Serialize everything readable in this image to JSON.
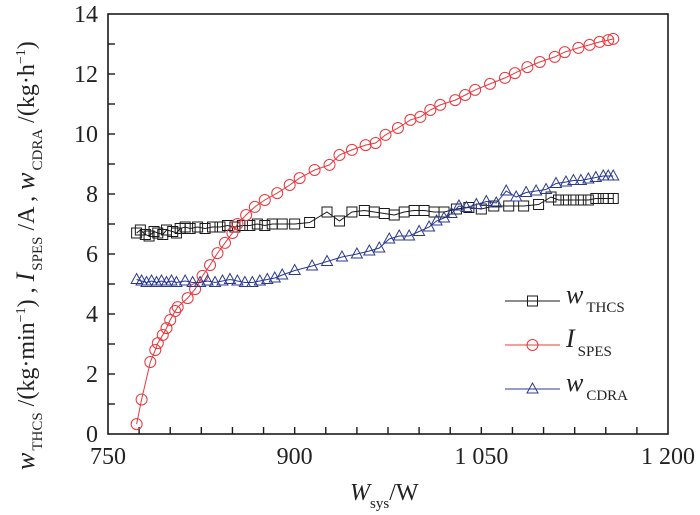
{
  "chart_data": {
    "type": "line",
    "title": "",
    "xlabel": {
      "main": "W",
      "sub": "sys",
      "unit": "/W"
    },
    "ylabel": [
      {
        "main": "w",
        "sub": "THCS",
        "unit": " /(kg·min",
        "sup": "−1",
        "tail": ") , "
      },
      {
        "main": "I",
        "sub": "SPES",
        "unit": " /A , ",
        "sup": "",
        "tail": ""
      },
      {
        "main": "w",
        "sub": "CDRA",
        "unit": " /(kg·h",
        "sup": "−1",
        "tail": ")"
      }
    ],
    "xlim": [
      750,
      1200
    ],
    "ylim": [
      0,
      14
    ],
    "x_ticks": [
      750,
      900,
      1050,
      1200
    ],
    "x_tick_labels": [
      "750",
      "900",
      "1 050",
      "1 200"
    ],
    "x_minor_step": 25,
    "y_ticks": [
      0,
      2,
      4,
      6,
      8,
      10,
      12,
      14
    ],
    "y_tick_labels": [
      "0",
      "2",
      "4",
      "6",
      "8",
      "10",
      "12",
      "14"
    ],
    "y_minor_step": 1,
    "grid": false,
    "legend_position": "bottom-right",
    "series": [
      {
        "name": "w_THCS",
        "label_main": "w",
        "label_sub": "THCS",
        "color": "#1a1a1a",
        "marker": "square",
        "x": [
          773,
          776,
          780,
          783,
          787,
          790,
          794,
          797,
          802,
          805,
          808,
          812,
          816,
          822,
          828,
          834,
          840,
          846,
          852,
          858,
          864,
          870,
          876,
          882,
          890,
          900,
          912,
          926,
          936,
          946,
          956,
          964,
          972,
          980,
          988,
          996,
          1004,
          1012,
          1020,
          1030,
          1040,
          1050,
          1060,
          1072,
          1084,
          1096,
          1106,
          1112,
          1118,
          1124,
          1130,
          1136,
          1142,
          1148,
          1152,
          1156
        ],
        "values": [
          6.7,
          6.8,
          6.65,
          6.6,
          6.75,
          6.7,
          6.65,
          6.8,
          6.75,
          6.7,
          6.85,
          6.9,
          6.85,
          6.9,
          6.85,
          6.9,
          6.9,
          6.95,
          6.9,
          6.95,
          6.95,
          7.0,
          6.95,
          7.0,
          7.0,
          7.0,
          7.05,
          7.4,
          7.1,
          7.4,
          7.45,
          7.4,
          7.35,
          7.3,
          7.4,
          7.45,
          7.45,
          7.4,
          7.4,
          7.5,
          7.55,
          7.5,
          7.6,
          7.6,
          7.6,
          7.65,
          7.9,
          7.8,
          7.8,
          7.8,
          7.8,
          7.8,
          7.85,
          7.85,
          7.85,
          7.85
        ]
      },
      {
        "name": "I_SPES",
        "label_main": "I",
        "label_sub": "SPES",
        "color": "#e8383d",
        "marker": "circle",
        "x": [
          773,
          777,
          784,
          788,
          790,
          794,
          797,
          800,
          804,
          806,
          814,
          820,
          826,
          832,
          838,
          844,
          850,
          854,
          861,
          868,
          876,
          886,
          896,
          904,
          916,
          928,
          936,
          946,
          957,
          965,
          973,
          983,
          993,
          1001,
          1009,
          1017,
          1029,
          1037,
          1045,
          1057,
          1069,
          1077,
          1087,
          1097,
          1109,
          1117,
          1128,
          1137,
          1145,
          1152,
          1156
        ],
        "values": [
          0.33,
          1.15,
          2.4,
          2.8,
          3.03,
          3.3,
          3.53,
          3.8,
          4.1,
          4.23,
          4.53,
          4.83,
          5.27,
          5.63,
          6.03,
          6.37,
          6.7,
          7.0,
          7.3,
          7.57,
          7.8,
          8.03,
          8.3,
          8.53,
          8.8,
          8.97,
          9.3,
          9.47,
          9.63,
          9.7,
          9.97,
          10.2,
          10.47,
          10.57,
          10.8,
          10.97,
          11.13,
          11.3,
          11.47,
          11.67,
          11.87,
          12.03,
          12.23,
          12.4,
          12.57,
          12.73,
          12.87,
          12.97,
          13.07,
          13.13,
          13.17
        ]
      },
      {
        "name": "w_CDRA",
        "label_main": "w",
        "label_sub": "CDRA",
        "color": "#2b3a8f",
        "marker": "triangle",
        "x": [
          773,
          777,
          781,
          785,
          789,
          793,
          797,
          801,
          805,
          812,
          818,
          824,
          830,
          836,
          842,
          848,
          854,
          860,
          866,
          872,
          878,
          884,
          890,
          900,
          914,
          926,
          938,
          950,
          960,
          968,
          976,
          984,
          992,
          1000,
          1008,
          1014,
          1020,
          1026,
          1032,
          1038,
          1046,
          1054,
          1062,
          1070,
          1078,
          1086,
          1094,
          1102,
          1110,
          1118,
          1124,
          1130,
          1136,
          1142,
          1148,
          1152,
          1156
        ],
        "values": [
          5.15,
          5.1,
          5.05,
          5.1,
          5.05,
          5.1,
          5.05,
          5.1,
          5.05,
          5.1,
          5.05,
          5.05,
          5.1,
          5.05,
          5.1,
          5.15,
          5.1,
          5.05,
          5.05,
          5.1,
          5.15,
          5.2,
          5.3,
          5.45,
          5.6,
          5.75,
          5.9,
          6.0,
          6.1,
          6.2,
          6.5,
          6.6,
          6.6,
          6.75,
          6.9,
          7.1,
          7.2,
          7.35,
          7.6,
          7.55,
          7.65,
          7.75,
          7.7,
          8.1,
          7.9,
          8.05,
          8.1,
          8.15,
          8.35,
          8.4,
          8.45,
          8.45,
          8.5,
          8.55,
          8.6,
          8.6,
          8.6
        ]
      }
    ]
  }
}
